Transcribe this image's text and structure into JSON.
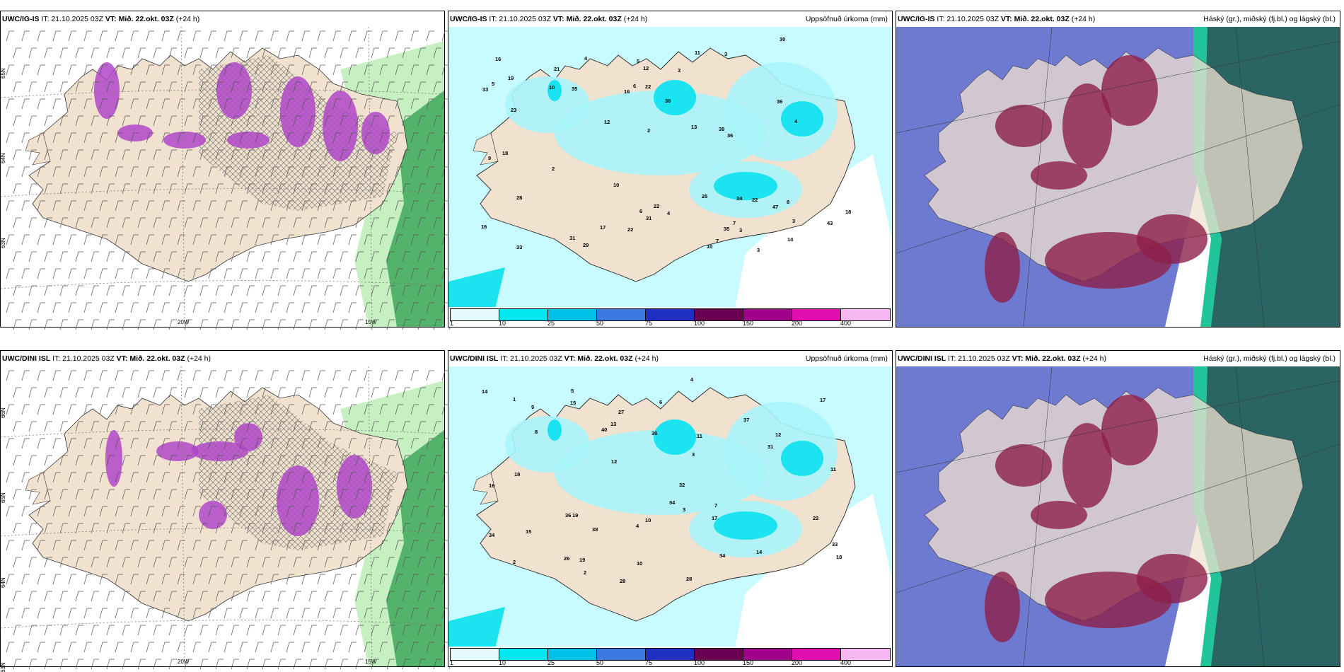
{
  "panels": [
    {
      "id": "p1",
      "model": "UWC/IG-IS",
      "it": "IT: 21.10.2025 03Z",
      "vt_label": "VT:",
      "vt": "Mið. 22.okt. 03Z",
      "lead": "(+24 h)",
      "right_title": "",
      "type": "wind",
      "lat_labels": [
        "65N",
        "64N",
        "63N"
      ],
      "lon_labels": [
        "20W",
        "15W"
      ]
    },
    {
      "id": "p2",
      "model": "UWC/IG-IS",
      "it": "IT: 21.10.2025 03Z",
      "vt_label": "VT:",
      "vt": "Mið. 22.okt. 03Z",
      "lead": "(+24 h)",
      "right_title": "Uppsöfnuð úrkoma (mm)",
      "type": "precip",
      "values": [
        "3",
        "5",
        "19",
        "11",
        "2",
        "6",
        "4",
        "4",
        "3",
        "10",
        "3",
        "12",
        "39",
        "47",
        "34",
        "33",
        "35",
        "22",
        "22",
        "16",
        "14",
        "16",
        "25",
        "31",
        "22",
        "36",
        "38",
        "43",
        "36",
        "23",
        "29",
        "22",
        "10",
        "33",
        "18",
        "21",
        "31",
        "30",
        "35",
        "13",
        "17",
        "16",
        "10",
        "7",
        "6",
        "4",
        "8",
        "2",
        "5",
        "3",
        "7",
        "9",
        "12",
        "18",
        "28",
        "3"
      ]
    },
    {
      "id": "p3",
      "model": "UWC/IG-IS",
      "it": "IT: 21.10.2025 03Z",
      "vt_label": "VT:",
      "vt": "Mið. 22.okt. 03Z",
      "lead": "(+24 h)",
      "right_title": "Háský (gr.), miðský (fj.bl.) og lágský (bl.)",
      "type": "cloud"
    },
    {
      "id": "p4",
      "model": "UWC/DINI ISL",
      "it": "IT: 21.10.2025 03Z",
      "vt_label": "VT:",
      "vt": "Mið. 22.okt. 03Z",
      "lead": "(+24 h)",
      "right_title": "",
      "type": "wind",
      "lat_labels": [
        "66N",
        "65N",
        "64N",
        "63N"
      ],
      "lon_labels": [
        "20W",
        "15W"
      ]
    },
    {
      "id": "p5",
      "model": "UWC/DINI ISL",
      "it": "IT: 21.10.2025 03Z",
      "vt_label": "VT:",
      "vt": "Mið. 22.okt. 03Z",
      "lead": "(+24 h)",
      "right_title": "Uppsöfnuð úrkoma (mm)",
      "type": "precip",
      "values": [
        "2",
        "4",
        "3",
        "10",
        "12",
        "17",
        "11",
        "14",
        "15",
        "16",
        "40",
        "37",
        "32",
        "34",
        "27",
        "19",
        "11",
        "13",
        "18",
        "17",
        "35",
        "36",
        "38",
        "34",
        "31",
        "19",
        "28",
        "33",
        "26",
        "15",
        "14",
        "10",
        "6",
        "4",
        "3",
        "5",
        "7",
        "8",
        "2",
        "1",
        "9",
        "12",
        "22",
        "34",
        "28",
        "18"
      ]
    },
    {
      "id": "p6",
      "model": "UWC/DINI ISL",
      "it": "IT: 21.10.2025 03Z",
      "vt_label": "VT:",
      "vt": "Mið. 22.okt. 03Z",
      "lead": "(+24 h)",
      "right_title": "Háský (gr.), miðský (fj.bl.) og lágský (bl.)",
      "type": "cloud"
    }
  ],
  "legend": {
    "labels": [
      "1",
      "10",
      "25",
      "50",
      "75",
      "100",
      "150",
      "200",
      "400"
    ],
    "colors": [
      "#e6fbff",
      "#00e7f0",
      "#00c0e8",
      "#3a7ae0",
      "#2030c0",
      "#6a0050",
      "#a0008a",
      "#e010b0",
      "#f6b8f0"
    ]
  },
  "colors": {
    "land": "#f1e2d0",
    "sea_precip": "#c8fbff",
    "precip_mid": "#1be3ef",
    "wind_green": "#3fa85a",
    "wind_light": "#c6efc2",
    "magenta": "#b046c8",
    "cloud_blue": "#5561c8",
    "cloud_red": "#8d1f48",
    "cloud_teal": "#2a6563"
  }
}
